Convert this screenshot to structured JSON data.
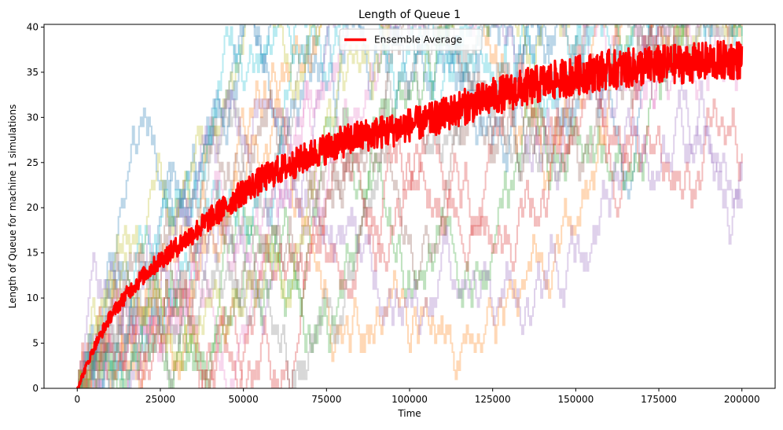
{
  "chart_data": {
    "type": "line",
    "title": "Length of Queue 1",
    "xlabel": "Time",
    "ylabel": "Length of Queue for machine 1 simulations",
    "xlim": [
      -10000,
      210000
    ],
    "ylim": [
      0,
      40.3
    ],
    "x_ticks": [
      0,
      25000,
      50000,
      75000,
      100000,
      125000,
      150000,
      175000,
      200000
    ],
    "x_tick_labels": [
      "0",
      "25000",
      "50000",
      "75000",
      "100000",
      "125000",
      "150000",
      "175000",
      "200000"
    ],
    "y_ticks": [
      0,
      5,
      10,
      15,
      20,
      25,
      30,
      35,
      40
    ],
    "y_tick_labels": [
      "0",
      "5",
      "10",
      "15",
      "20",
      "25",
      "30",
      "35",
      "40"
    ],
    "grid": false,
    "legend": {
      "position": "top-center",
      "entries": [
        "Ensemble Average"
      ]
    },
    "ensemble_average": {
      "name": "Ensemble Average",
      "color": "#ff0000",
      "x": [
        0,
        5000,
        10000,
        15000,
        20000,
        25000,
        30000,
        35000,
        40000,
        45000,
        50000,
        55000,
        60000,
        65000,
        70000,
        75000,
        80000,
        85000,
        90000,
        95000,
        100000,
        105000,
        110000,
        115000,
        120000,
        125000,
        130000,
        135000,
        140000,
        145000,
        150000,
        155000,
        160000,
        165000,
        170000,
        175000,
        180000,
        185000,
        190000,
        195000,
        200000
      ],
      "y": [
        0,
        4.5,
        8,
        10.5,
        12.5,
        14.2,
        15.7,
        17.2,
        18.8,
        20.2,
        21.8,
        23,
        24.1,
        24.8,
        25.8,
        26.6,
        27.3,
        27.9,
        28.3,
        28.6,
        29.2,
        29.5,
        30.2,
        31,
        31.6,
        32.3,
        32.8,
        33.3,
        33.8,
        34.2,
        34.6,
        35,
        35.3,
        35.4,
        35.6,
        35.8,
        35.9,
        36,
        36.2,
        36.3,
        36.4
      ]
    },
    "simulation_colors": [
      "#1f77b4",
      "#ff7f0e",
      "#2ca02c",
      "#d62728",
      "#9467bd",
      "#8c564b",
      "#e377c2",
      "#7f7f7f",
      "#bcbd22",
      "#17becf"
    ],
    "simulation_count": 20
  }
}
